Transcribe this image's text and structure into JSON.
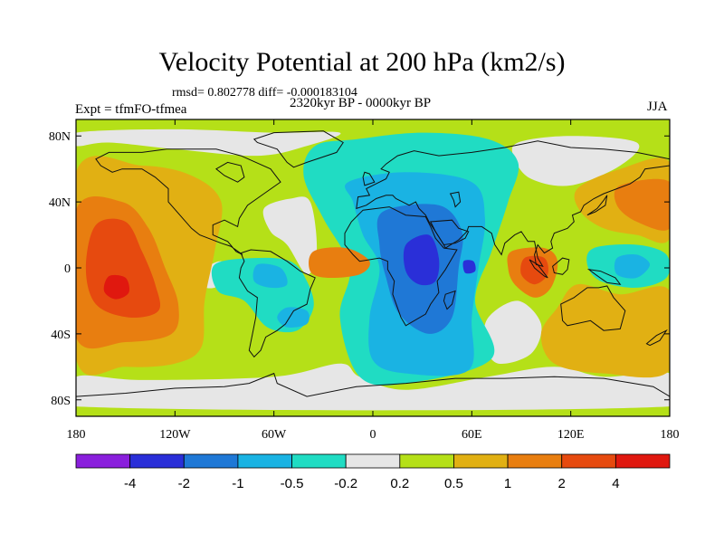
{
  "chart_data": {
    "type": "heatmap",
    "title": "Velocity Potential at 200 hPa (km2/s)",
    "stats_text": "rmsd= 0.802778 diff= -0.000183104",
    "left_label": "Expt = tfmFO-tfmea",
    "center_label": "2320kyr BP - 0000kyr BP",
    "right_label": "JJA",
    "x_axis": {
      "range": [
        -180,
        180
      ],
      "ticks": [
        -180,
        -120,
        -60,
        0,
        60,
        120,
        180
      ],
      "tick_labels": [
        "180",
        "120W",
        "60W",
        "0",
        "60E",
        "120E",
        "180"
      ]
    },
    "y_axis": {
      "range": [
        -90,
        90
      ],
      "ticks": [
        80,
        40,
        0,
        -40,
        -80
      ],
      "tick_labels": [
        "80N",
        "40N",
        "0",
        "40S",
        "80S"
      ]
    },
    "colorbar": {
      "labels": [
        "-4",
        "-2",
        "-1",
        "-0.5",
        "-0.2",
        "0.2",
        "0.5",
        "1",
        "2",
        "4"
      ],
      "colors": [
        "#8a1fdc",
        "#2a2fd8",
        "#1f78d6",
        "#1ab3e3",
        "#20dcc3",
        "#e6e6e6",
        "#b5e018",
        "#e1b013",
        "#e87e10",
        "#e64a0f",
        "#e0180f"
      ]
    },
    "regions": [
      {
        "name": "pacific-positive",
        "level": 7,
        "pts": [
          [
            -180,
            58
          ],
          [
            -140,
            62
          ],
          [
            -110,
            56
          ],
          [
            -92,
            40
          ],
          [
            -96,
            10
          ],
          [
            -102,
            -20
          ],
          [
            -104,
            -48
          ],
          [
            -120,
            -58
          ],
          [
            -150,
            -60
          ],
          [
            -180,
            -55
          ]
        ]
      },
      {
        "name": "pacific-positive-1",
        "level": 8,
        "pts": [
          [
            -180,
            35
          ],
          [
            -152,
            40
          ],
          [
            -136,
            24
          ],
          [
            -126,
            0
          ],
          [
            -118,
            -22
          ],
          [
            -122,
            -40
          ],
          [
            -150,
            -45
          ],
          [
            -180,
            -42
          ]
        ]
      },
      {
        "name": "pacific-positive-2",
        "level": 9,
        "pts": [
          [
            -168,
            26
          ],
          [
            -150,
            28
          ],
          [
            -140,
            10
          ],
          [
            -132,
            -10
          ],
          [
            -130,
            -26
          ],
          [
            -148,
            -30
          ],
          [
            -168,
            -22
          ],
          [
            -174,
            0
          ]
        ]
      },
      {
        "name": "pacific-max",
        "level": 10,
        "pts": [
          [
            -160,
            -5
          ],
          [
            -150,
            -6
          ],
          [
            -148,
            -15
          ],
          [
            -156,
            -19
          ],
          [
            -163,
            -14
          ]
        ]
      },
      {
        "name": "africa-negative",
        "level": 4,
        "pts": [
          [
            -35,
            74
          ],
          [
            -10,
            78
          ],
          [
            30,
            82
          ],
          [
            70,
            78
          ],
          [
            88,
            64
          ],
          [
            82,
            40
          ],
          [
            72,
            10
          ],
          [
            62,
            -20
          ],
          [
            72,
            -55
          ],
          [
            20,
            -70
          ],
          [
            -8,
            -66
          ],
          [
            -20,
            -30
          ],
          [
            -14,
            0
          ],
          [
            -30,
            30
          ],
          [
            -42,
            56
          ]
        ]
      },
      {
        "name": "africa-negative-1",
        "level": 3,
        "pts": [
          [
            -15,
            52
          ],
          [
            20,
            58
          ],
          [
            60,
            52
          ],
          [
            68,
            30
          ],
          [
            64,
            0
          ],
          [
            60,
            -30
          ],
          [
            58,
            -62
          ],
          [
            20,
            -64
          ],
          [
            0,
            -56
          ],
          [
            -2,
            -30
          ],
          [
            4,
            0
          ],
          [
            -6,
            20
          ],
          [
            -12,
            40
          ]
        ]
      },
      {
        "name": "africa-negative-2",
        "level": 2,
        "pts": [
          [
            6,
            34
          ],
          [
            40,
            38
          ],
          [
            54,
            22
          ],
          [
            52,
            0
          ],
          [
            48,
            -30
          ],
          [
            34,
            -40
          ],
          [
            16,
            -28
          ],
          [
            8,
            -6
          ],
          [
            4,
            14
          ]
        ]
      },
      {
        "name": "africa-min",
        "level": 1,
        "pts": [
          [
            20,
            14
          ],
          [
            34,
            20
          ],
          [
            40,
            6
          ],
          [
            38,
            -8
          ],
          [
            28,
            -10
          ],
          [
            20,
            -2
          ]
        ]
      },
      {
        "name": "africa-min-east",
        "level": 1,
        "pts": [
          [
            55,
            4
          ],
          [
            61,
            4
          ],
          [
            62,
            -2
          ],
          [
            56,
            -3
          ]
        ]
      },
      {
        "name": "atlantic-positive",
        "level": 8,
        "pts": [
          [
            -36,
            10
          ],
          [
            -16,
            12
          ],
          [
            -2,
            4
          ],
          [
            -8,
            -4
          ],
          [
            -28,
            -6
          ],
          [
            -38,
            -2
          ]
        ]
      },
      {
        "name": "south-america-negative",
        "level": 4,
        "pts": [
          [
            -96,
            2
          ],
          [
            -72,
            6
          ],
          [
            -50,
            4
          ],
          [
            -40,
            -8
          ],
          [
            -36,
            -24
          ],
          [
            -46,
            -38
          ],
          [
            -64,
            -36
          ],
          [
            -78,
            -20
          ],
          [
            -94,
            -14
          ]
        ]
      },
      {
        "name": "south-america-negative-1",
        "level": 3,
        "pts": [
          [
            -70,
            2
          ],
          [
            -56,
            0
          ],
          [
            -52,
            -10
          ],
          [
            -62,
            -12
          ],
          [
            -72,
            -8
          ]
        ]
      },
      {
        "name": "south-america-negative-2",
        "level": 3,
        "pts": [
          [
            -52,
            -24
          ],
          [
            -40,
            -26
          ],
          [
            -40,
            -34
          ],
          [
            -52,
            -36
          ],
          [
            -58,
            -30
          ]
        ]
      },
      {
        "name": "indonesia-positive",
        "level": 8,
        "pts": [
          [
            84,
            10
          ],
          [
            104,
            12
          ],
          [
            112,
            4
          ],
          [
            108,
            -12
          ],
          [
            98,
            -18
          ],
          [
            86,
            -10
          ],
          [
            82,
            0
          ]
        ]
      },
      {
        "name": "indonesia-positive-1",
        "level": 9,
        "pts": [
          [
            92,
            6
          ],
          [
            104,
            6
          ],
          [
            106,
            -4
          ],
          [
            98,
            -10
          ],
          [
            90,
            -4
          ]
        ]
      },
      {
        "name": "west-pacific-negative",
        "level": 4,
        "pts": [
          [
            134,
            12
          ],
          [
            160,
            14
          ],
          [
            178,
            8
          ],
          [
            178,
            -6
          ],
          [
            160,
            -12
          ],
          [
            138,
            -8
          ],
          [
            130,
            2
          ]
        ]
      },
      {
        "name": "west-pacific-negative-1",
        "level": 3,
        "pts": [
          [
            148,
            6
          ],
          [
            160,
            8
          ],
          [
            168,
            2
          ],
          [
            160,
            -6
          ],
          [
            148,
            -4
          ]
        ]
      },
      {
        "name": "australia-positive",
        "level": 7,
        "pts": [
          [
            124,
            -10
          ],
          [
            150,
            -16
          ],
          [
            180,
            -14
          ],
          [
            180,
            -62
          ],
          [
            140,
            -64
          ],
          [
            110,
            -58
          ],
          [
            102,
            -40
          ],
          [
            112,
            -24
          ]
        ]
      },
      {
        "name": "northeast-pacific-positive",
        "level": 7,
        "pts": [
          [
            124,
            48
          ],
          [
            150,
            60
          ],
          [
            180,
            64
          ],
          [
            180,
            18
          ],
          [
            160,
            20
          ],
          [
            140,
            24
          ],
          [
            126,
            34
          ]
        ]
      },
      {
        "name": "northeast-pacific-positive-1",
        "level": 8,
        "pts": [
          [
            150,
            50
          ],
          [
            180,
            52
          ],
          [
            180,
            24
          ],
          [
            160,
            28
          ],
          [
            148,
            38
          ]
        ]
      }
    ],
    "near_zero_regions": [
      {
        "name": "arctic-neutral",
        "pts": [
          [
            -180,
            82
          ],
          [
            -120,
            84
          ],
          [
            -60,
            82
          ],
          [
            -20,
            82
          ],
          [
            -40,
            74
          ],
          [
            -70,
            68
          ],
          [
            -120,
            72
          ],
          [
            -160,
            76
          ],
          [
            -180,
            74
          ]
        ]
      },
      {
        "name": "north-atlantic-neutral",
        "pts": [
          [
            -66,
            36
          ],
          [
            -50,
            42
          ],
          [
            -38,
            40
          ],
          [
            -34,
            10
          ],
          [
            -40,
            -4
          ],
          [
            -52,
            14
          ],
          [
            -62,
            22
          ]
        ]
      },
      {
        "name": "southern-ocean-neutral",
        "pts": [
          [
            -140,
            -68
          ],
          [
            -60,
            -66
          ],
          [
            -20,
            -58
          ],
          [
            -8,
            -66
          ],
          [
            20,
            -74
          ],
          [
            70,
            -66
          ],
          [
            110,
            -60
          ],
          [
            140,
            -66
          ],
          [
            180,
            -64
          ],
          [
            180,
            -84
          ],
          [
            -180,
            -84
          ],
          [
            -180,
            -66
          ]
        ]
      },
      {
        "name": "indian-ocean-neutral",
        "pts": [
          [
            70,
            -30
          ],
          [
            88,
            -20
          ],
          [
            102,
            -34
          ],
          [
            96,
            -52
          ],
          [
            76,
            -58
          ],
          [
            68,
            -46
          ]
        ]
      },
      {
        "name": "siberia-neutral",
        "pts": [
          [
            88,
            76
          ],
          [
            120,
            80
          ],
          [
            160,
            76
          ],
          [
            150,
            62
          ],
          [
            120,
            50
          ],
          [
            96,
            54
          ],
          [
            86,
            66
          ]
        ]
      },
      {
        "name": "east-pacific-neutral",
        "pts": [
          [
            -104,
            -2
          ],
          [
            -92,
            4
          ],
          [
            -86,
            -4
          ],
          [
            -96,
            -12
          ],
          [
            -106,
            -10
          ]
        ]
      }
    ]
  }
}
